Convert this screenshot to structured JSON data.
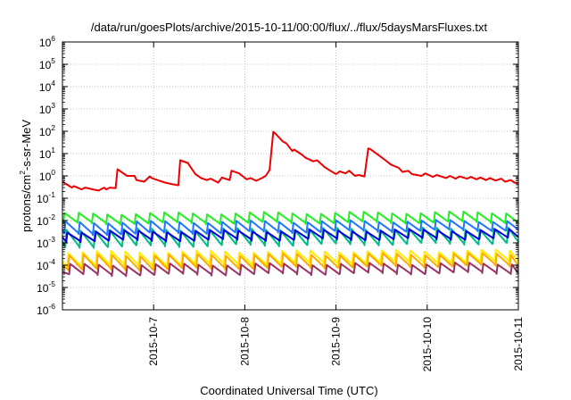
{
  "chart_data": {
    "type": "line",
    "title": "/data/run/goesPlots/archive/2015-10-11/00:00/flux/../flux/5daysMarsFluxes.txt",
    "xlabel": "Coordinated Universal Time (UTC)",
    "ylabel": "protons/cm²-s-sr-MeV",
    "ylabel_parts": {
      "base": "protons/cm",
      "sup": "2",
      "rest": "-s-sr-MeV"
    },
    "yscale": "log",
    "ylim": [
      1e-06,
      1000000.0
    ],
    "yticks": [
      {
        "value": 1e-06,
        "exp": "-6"
      },
      {
        "value": 1e-05,
        "exp": "-5"
      },
      {
        "value": 0.0001,
        "exp": "-4"
      },
      {
        "value": 0.001,
        "exp": "-3"
      },
      {
        "value": 0.01,
        "exp": "-2"
      },
      {
        "value": 0.1,
        "exp": "-1"
      },
      {
        "value": 1,
        "exp": "0"
      },
      {
        "value": 10,
        "exp": "1"
      },
      {
        "value": 100,
        "exp": "2"
      },
      {
        "value": 1000,
        "exp": "3"
      },
      {
        "value": 10000,
        "exp": "4"
      },
      {
        "value": 100000,
        "exp": "5"
      },
      {
        "value": 1000000,
        "exp": "6"
      }
    ],
    "ytick_base": "10",
    "xlim": [
      "2015-10-06T00:00",
      "2015-10-11T00:00"
    ],
    "xticks": [
      "2015-10-7",
      "2015-10-8",
      "2015-10-9",
      "2015-10-10",
      "2015-10-11"
    ],
    "xtick_values": [
      "2015-10-07T00:00",
      "2015-10-08T00:00",
      "2015-10-09T00:00",
      "2015-10-10T00:00",
      "2015-10-11T00:00"
    ],
    "grid": true,
    "series": [
      {
        "color": "#ee0000",
        "x": [
          "2015-10-06T00:00",
          "2015-10-06T02:30",
          "2015-10-06T03:00",
          "2015-10-06T05:00",
          "2015-10-06T06:00",
          "2015-10-06T08:00",
          "2015-10-06T09:30",
          "2015-10-06T11:00",
          "2015-10-06T11:30",
          "2015-10-06T12:30",
          "2015-10-06T14:00",
          "2015-10-06T14:30",
          "2015-10-06T15:30",
          "2015-10-06T17:00",
          "2015-10-06T19:00",
          "2015-10-06T19:30",
          "2015-10-06T21:30",
          "2015-10-06T23:00",
          "2015-10-06T23:30",
          "2015-10-07T01:00",
          "2015-10-07T03:00",
          "2015-10-07T05:00",
          "2015-10-07T06:30",
          "2015-10-07T07:00",
          "2015-10-07T09:00",
          "2015-10-07T10:30",
          "2015-10-07T11:00",
          "2015-10-07T12:30",
          "2015-10-07T14:00",
          "2015-10-07T15:00",
          "2015-10-07T17:00",
          "2015-10-07T18:00",
          "2015-10-07T20:00",
          "2015-10-07T20:30",
          "2015-10-07T22:30",
          "2015-10-08T00:30",
          "2015-10-08T01:30",
          "2015-10-08T03:00",
          "2015-10-08T04:30",
          "2015-10-08T05:30",
          "2015-10-08T06:30",
          "2015-10-08T07:30",
          "2015-10-08T08:00",
          "2015-10-08T10:00",
          "2015-10-08T11:00",
          "2015-10-08T12:30",
          "2015-10-08T13:00",
          "2015-10-08T15:00",
          "2015-10-08T16:00",
          "2015-10-08T18:00",
          "2015-10-08T19:00",
          "2015-10-08T20:30",
          "2015-10-08T21:00",
          "2015-10-08T22:30",
          "2015-10-09T00:00",
          "2015-10-09T01:00",
          "2015-10-09T02:30",
          "2015-10-09T03:30",
          "2015-10-09T05:00",
          "2015-10-09T06:00",
          "2015-10-09T07:30",
          "2015-10-09T08:30",
          "2015-10-09T09:00",
          "2015-10-09T11:00",
          "2015-10-09T13:00",
          "2015-10-09T14:30",
          "2015-10-09T16:30",
          "2015-10-09T17:30",
          "2015-10-09T19:00",
          "2015-10-09T20:00",
          "2015-10-09T22:30",
          "2015-10-09T23:30",
          "2015-10-10T01:30",
          "2015-10-10T02:30",
          "2015-10-10T05:00",
          "2015-10-10T06:00",
          "2015-10-10T07:30",
          "2015-10-10T08:30",
          "2015-10-10T10:30",
          "2015-10-10T11:30",
          "2015-10-10T13:00",
          "2015-10-10T14:00",
          "2015-10-10T15:30",
          "2015-10-10T16:30",
          "2015-10-10T18:00",
          "2015-10-10T19:30",
          "2015-10-10T20:30",
          "2015-10-10T22:00",
          "2015-10-10T23:00",
          "2015-10-11T00:00"
        ],
        "values": [
          0.55,
          0.3,
          0.35,
          0.25,
          0.3,
          0.25,
          0.22,
          0.3,
          0.25,
          0.3,
          0.28,
          2.0,
          1.5,
          1.0,
          1.0,
          0.65,
          0.55,
          0.95,
          0.8,
          0.65,
          0.5,
          0.42,
          0.38,
          5.0,
          3.8,
          1.6,
          1.2,
          0.8,
          0.65,
          0.75,
          0.5,
          0.85,
          0.65,
          1.7,
          1.3,
          0.7,
          0.8,
          0.6,
          0.8,
          1.0,
          1.8,
          95,
          80,
          35,
          28,
          13,
          15,
          9,
          6.5,
          4.5,
          5.0,
          3.0,
          2.5,
          1.7,
          1.2,
          1.6,
          1.3,
          1.7,
          1.0,
          1.1,
          0.95,
          17,
          16,
          9,
          5,
          3.2,
          2.3,
          1.5,
          1.7,
          1.2,
          1.0,
          1.3,
          0.9,
          1.1,
          0.8,
          1.0,
          0.75,
          0.95,
          0.75,
          0.9,
          0.7,
          0.85,
          0.65,
          0.8,
          0.62,
          0.75,
          0.55,
          0.65,
          0.5,
          0.45
        ]
      },
      {
        "color": "#22ee22",
        "cycle_hours": 3.75,
        "max": 0.0235,
        "min": 0.0072,
        "start": 0.009,
        "trend": 1.2
      },
      {
        "color": "#1f77ff",
        "cycle_hours": 3.75,
        "max": 0.0098,
        "min": 0.0024,
        "start": 0.004,
        "trend": 1.6
      },
      {
        "color": "#00bb88",
        "cycle_hours": 3.75,
        "max": 0.0045,
        "min": 0.00065,
        "start": 0.0012,
        "trend": 1.5
      },
      {
        "color": "#0000dd",
        "cycle_hours": 3.75,
        "max": 0.0038,
        "min": 0.0012,
        "start": 0.0018,
        "trend": 1.3
      },
      {
        "color": "#ffee00",
        "cycle_hours": 3.75,
        "max": 0.00045,
        "min": 9e-05,
        "start": 0.00015,
        "trend": 1.6
      },
      {
        "color": "#ffaa00",
        "cycle_hours": 3.75,
        "max": 0.00032,
        "min": 6e-05,
        "start": 0.0001,
        "trend": 1.6
      },
      {
        "color": "#993366",
        "cycle_hours": 3.75,
        "max": 0.00012,
        "min": 3.5e-05,
        "start": 5e-05,
        "trend": 1.3
      }
    ]
  }
}
